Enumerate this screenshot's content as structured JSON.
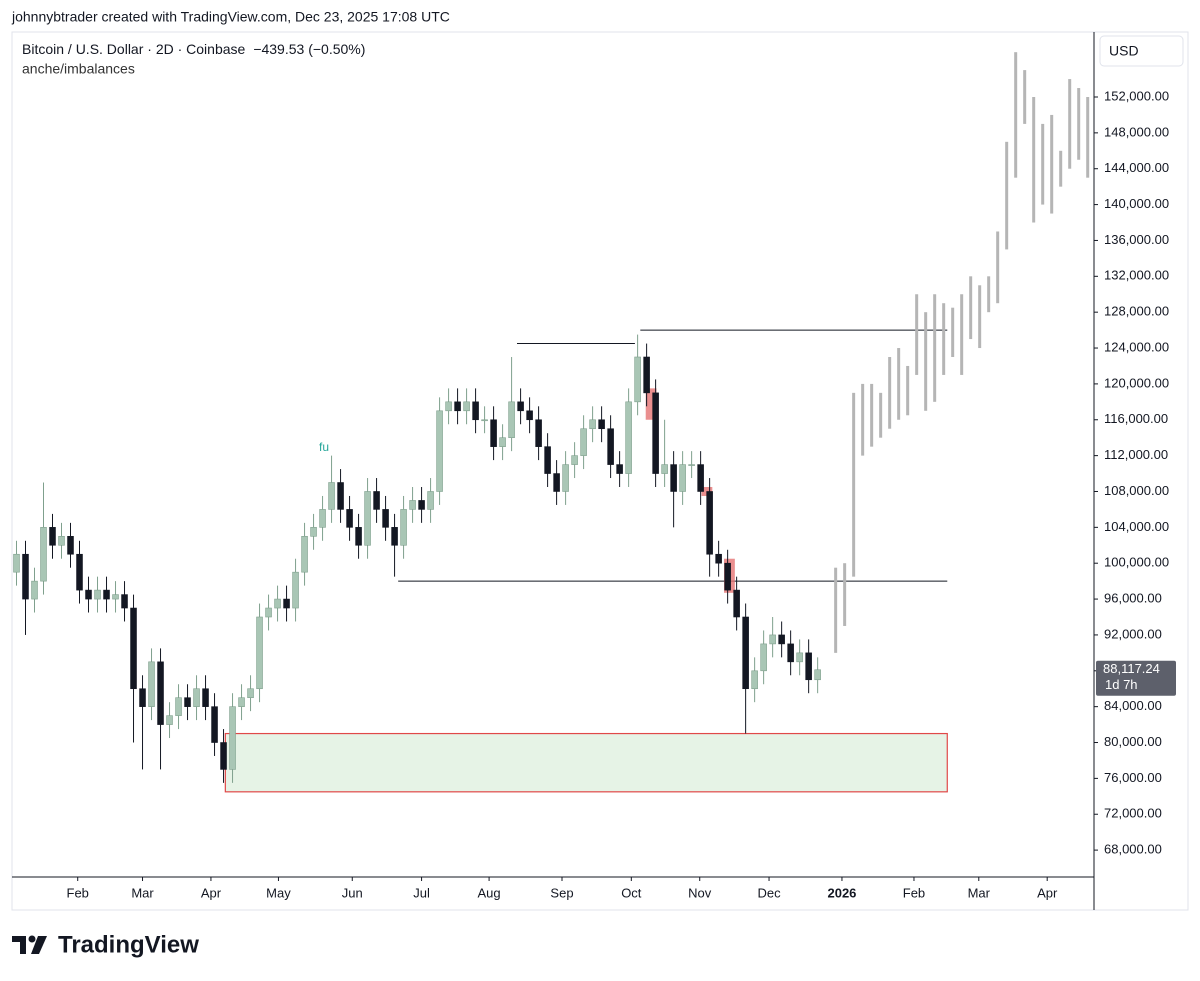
{
  "header": "johnnybtrader created with TradingView.com, Dec 23, 2025 17:08 UTC",
  "logo": "TradingView",
  "chart_data": {
    "type": "candlestick",
    "title": "Bitcoin / U.S. Dollar · 2D · Coinbase",
    "change": "−439.53 (−0.50%)",
    "indicator": "anche/imbalances",
    "currency": "USD",
    "annotation": "fu",
    "open": [
      99000,
      101000,
      96000,
      98000,
      104000,
      102000,
      103000,
      101000,
      97000,
      96000,
      97000,
      96000,
      96500,
      95000,
      86000,
      84000,
      89000,
      82000,
      83000,
      85000,
      84000,
      86000,
      84000,
      80000,
      77000,
      84000,
      85000,
      86000,
      94000,
      95000,
      96000,
      95000,
      99000,
      103000,
      104000,
      106000,
      109000,
      106000,
      104000,
      102000,
      108000,
      106000,
      104000,
      102000,
      106000,
      107000,
      106000,
      108000,
      117000,
      118000,
      117000,
      118000,
      116000,
      116000,
      113000,
      114000,
      118000,
      117000,
      116000,
      113000,
      110000,
      108000,
      111000,
      112000,
      115000,
      116000,
      115000,
      111000,
      110000,
      118000,
      123000,
      119000,
      110000,
      111000,
      108000,
      111000,
      111000,
      108000,
      101000,
      100000,
      97000,
      94000,
      86000,
      88000,
      91000,
      92000,
      91000,
      89000,
      90000,
      87000
    ],
    "high": [
      102500,
      102500,
      99500,
      109000,
      105500,
      104500,
      104500,
      102500,
      98500,
      98500,
      98500,
      98000,
      98000,
      96500,
      87500,
      90500,
      90500,
      84500,
      86500,
      86500,
      87500,
      87500,
      85500,
      81500,
      85500,
      86500,
      87500,
      95500,
      96500,
      97500,
      97500,
      100500,
      104500,
      105500,
      107500,
      112000,
      110500,
      107500,
      105500,
      109500,
      109500,
      107500,
      105500,
      107500,
      108500,
      108500,
      109500,
      118500,
      119500,
      119500,
      119500,
      119500,
      117500,
      117500,
      115500,
      123000,
      119500,
      118500,
      117500,
      114500,
      111500,
      112500,
      113500,
      116500,
      117500,
      117500,
      116500,
      112500,
      119500,
      125500,
      124500,
      120500,
      116000,
      112500,
      112500,
      112500,
      112500,
      109500,
      102500,
      101500,
      98500,
      95500,
      89500,
      92500,
      94000,
      93500,
      92500,
      91500,
      91500,
      89500
    ],
    "low": [
      97500,
      92000,
      94500,
      96500,
      100500,
      100500,
      99500,
      95500,
      94500,
      94500,
      94500,
      94500,
      93500,
      80000,
      77000,
      82500,
      77000,
      80500,
      81500,
      82500,
      82500,
      82500,
      78500,
      75500,
      75500,
      82500,
      83500,
      84500,
      92500,
      93500,
      93500,
      93500,
      97500,
      101500,
      102500,
      104500,
      104500,
      102500,
      100500,
      100500,
      104500,
      102500,
      98500,
      100500,
      104500,
      104500,
      104500,
      106500,
      115500,
      115500,
      115500,
      114500,
      114500,
      111500,
      111500,
      112500,
      115500,
      114500,
      111500,
      108500,
      106500,
      106500,
      109500,
      110500,
      113500,
      113500,
      109500,
      108500,
      108500,
      116500,
      117500,
      108500,
      108500,
      104000,
      106500,
      109500,
      106500,
      98500,
      98500,
      95500,
      92500,
      81000,
      84500,
      86500,
      89500,
      89500,
      87500,
      87500,
      85500,
      85500
    ],
    "close": [
      101000,
      96000,
      98000,
      104000,
      102000,
      103000,
      101000,
      97000,
      96000,
      97000,
      96000,
      96500,
      95000,
      86000,
      84000,
      89000,
      82000,
      83000,
      85000,
      84000,
      86000,
      84000,
      80000,
      77000,
      84000,
      85000,
      86000,
      94000,
      95000,
      96000,
      95000,
      99000,
      103000,
      104000,
      106000,
      109000,
      106000,
      104000,
      102000,
      108000,
      106000,
      104000,
      102000,
      106000,
      107000,
      106000,
      108000,
      117000,
      118000,
      117000,
      118000,
      116000,
      116000,
      113000,
      114000,
      118000,
      117000,
      116000,
      113000,
      110000,
      108000,
      111000,
      112000,
      115000,
      116000,
      115000,
      111000,
      110000,
      118000,
      123000,
      119000,
      110000,
      111000,
      108000,
      111000,
      111000,
      108000,
      101000,
      100000,
      97000,
      94000,
      86000,
      88000,
      91000,
      92000,
      91000,
      89000,
      90000,
      87000,
      88117.24
    ],
    "up_color": "#a9c6b5",
    "down_color": "#131722",
    "projection": {
      "color": "#b5b5b5",
      "x": [
        91,
        92,
        93,
        94,
        95,
        96,
        97,
        98,
        99,
        100,
        101,
        102,
        103,
        104,
        105,
        106,
        107,
        108,
        109,
        110,
        111,
        112,
        113,
        114,
        115,
        116,
        117,
        118,
        119
      ],
      "low": [
        90000,
        93000,
        98500,
        112000,
        113000,
        114000,
        115000,
        116000,
        116500,
        121000,
        117000,
        118000,
        121000,
        123000,
        121000,
        125000,
        124000,
        128000,
        129000,
        135000,
        143000,
        149000,
        138000,
        140000,
        139000,
        142000,
        144000,
        145000,
        143000
      ],
      "high": [
        99500,
        100000,
        119000,
        120000,
        120000,
        119000,
        123000,
        124000,
        122000,
        130000,
        128000,
        130000,
        129000,
        128500,
        130000,
        132000,
        131000,
        132000,
        137000,
        147000,
        157000,
        155000,
        152000,
        149000,
        150000,
        146000,
        154000,
        153000,
        152000
      ]
    },
    "levels": [
      {
        "price": 124500,
        "from": 55.6,
        "to": 68.7
      },
      {
        "price": 126000,
        "from": 69.3,
        "to": 103.4
      },
      {
        "price": 98000,
        "from": 42.4,
        "to": 103.4
      }
    ],
    "level_color": "#131722",
    "zone": {
      "top": 81000,
      "bottom": 74500,
      "from": 23.2,
      "to": 103.4,
      "fill": "#e6f3e6",
      "stroke": "#e04848"
    },
    "imbalances": [
      {
        "x": 70.5,
        "top": 119500,
        "bottom": 116000
      },
      {
        "x": 76.7,
        "top": 108500,
        "bottom": 107500
      },
      {
        "x": 79.2,
        "top": 100500,
        "bottom": 96700
      }
    ],
    "imbalance_color": "#e57373",
    "last_price": {
      "value": 88117.24,
      "label": "88,117.24"
    },
    "countdown": "1d 7h",
    "xlim": [
      -0.5,
      119.7
    ],
    "xticks": [
      {
        "value": 6.8,
        "label": "Feb"
      },
      {
        "value": 14,
        "label": "Mar"
      },
      {
        "value": 21.6,
        "label": "Apr"
      },
      {
        "value": 29.1,
        "label": "May"
      },
      {
        "value": 37.3,
        "label": "Jun"
      },
      {
        "value": 45,
        "label": "Jul"
      },
      {
        "value": 52.5,
        "label": "Aug"
      },
      {
        "value": 60.6,
        "label": "Sep"
      },
      {
        "value": 68.3,
        "label": "Oct"
      },
      {
        "value": 75.9,
        "label": "Nov"
      },
      {
        "value": 83.6,
        "label": "Dec"
      },
      {
        "value": 91.7,
        "label": "2026"
      },
      {
        "value": 99.7,
        "label": "Feb"
      },
      {
        "value": 106.9,
        "label": "Mar"
      },
      {
        "value": 114.5,
        "label": "Apr"
      }
    ],
    "ylim": [
      65000,
      159250
    ],
    "yticks": [
      {
        "value": 68000,
        "label": "68,000.00"
      },
      {
        "value": 72000,
        "label": "72,000.00"
      },
      {
        "value": 76000,
        "label": "76,000.00"
      },
      {
        "value": 80000,
        "label": "80,000.00"
      },
      {
        "value": 84000,
        "label": "84,000.00"
      },
      {
        "value": 88000,
        "label": "88,000.00"
      },
      {
        "value": 92000,
        "label": "92,000.00"
      },
      {
        "value": 96000,
        "label": "96,000.00"
      },
      {
        "value": 100000,
        "label": "100,000.00"
      },
      {
        "value": 104000,
        "label": "104,000.00"
      },
      {
        "value": 108000,
        "label": "108,000.00"
      },
      {
        "value": 112000,
        "label": "112,000.00"
      },
      {
        "value": 116000,
        "label": "116,000.00"
      },
      {
        "value": 120000,
        "label": "120,000.00"
      },
      {
        "value": 124000,
        "label": "124,000.00"
      },
      {
        "value": 128000,
        "label": "128,000.00"
      },
      {
        "value": 132000,
        "label": "132,000.00"
      },
      {
        "value": 136000,
        "label": "136,000.00"
      },
      {
        "value": 140000,
        "label": "140,000.00"
      },
      {
        "value": 144000,
        "label": "144,000.00"
      },
      {
        "value": 148000,
        "label": "148,000.00"
      },
      {
        "value": 152000,
        "label": "152,000.00"
      }
    ]
  }
}
